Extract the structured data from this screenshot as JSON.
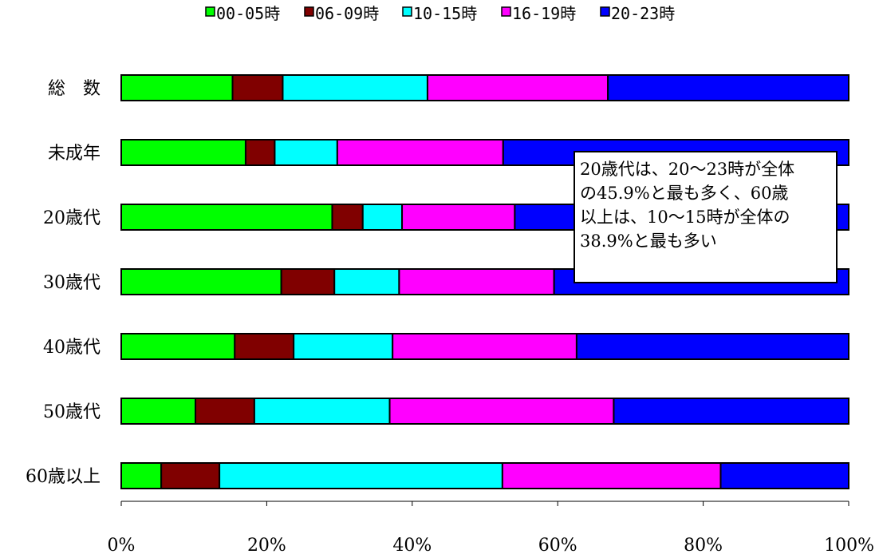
{
  "chart_data": {
    "type": "bar",
    "orientation": "horizontal",
    "stacked": "percent",
    "categories": [
      "総　数",
      "未成年",
      "20歳代",
      "30歳代",
      "40歳代",
      "50歳代",
      "60歳以上"
    ],
    "series": [
      {
        "name": "00-05時",
        "color": "#00ff00",
        "values": [
          15.3,
          17.1,
          29.0,
          22.0,
          15.6,
          10.2,
          5.5
        ]
      },
      {
        "name": "06-09時",
        "color": "#800000",
        "values": [
          6.9,
          4.0,
          4.2,
          7.3,
          8.1,
          8.1,
          8.0
        ]
      },
      {
        "name": "10-15時",
        "color": "#00ffff",
        "values": [
          19.9,
          8.6,
          5.4,
          8.9,
          13.6,
          18.6,
          38.9
        ]
      },
      {
        "name": "16-19時",
        "color": "#ff00ff",
        "values": [
          24.8,
          22.8,
          15.5,
          21.3,
          25.3,
          30.8,
          30.0
        ]
      },
      {
        "name": "20-23時",
        "color": "#0000ff",
        "values": [
          33.1,
          47.5,
          45.9,
          40.5,
          37.4,
          32.3,
          17.6
        ]
      }
    ],
    "x_ticks": [
      "0%",
      "20%",
      "40%",
      "60%",
      "80%",
      "100%"
    ],
    "xlim": [
      0,
      100
    ],
    "legend_position": "top",
    "grid": false
  },
  "annotation": {
    "lines": [
      "20歳代は、20～23時が全体",
      "の45.9%と最も多く、60歳",
      "以上は、10～15時が全体の",
      "38.9%と最も多い"
    ]
  }
}
